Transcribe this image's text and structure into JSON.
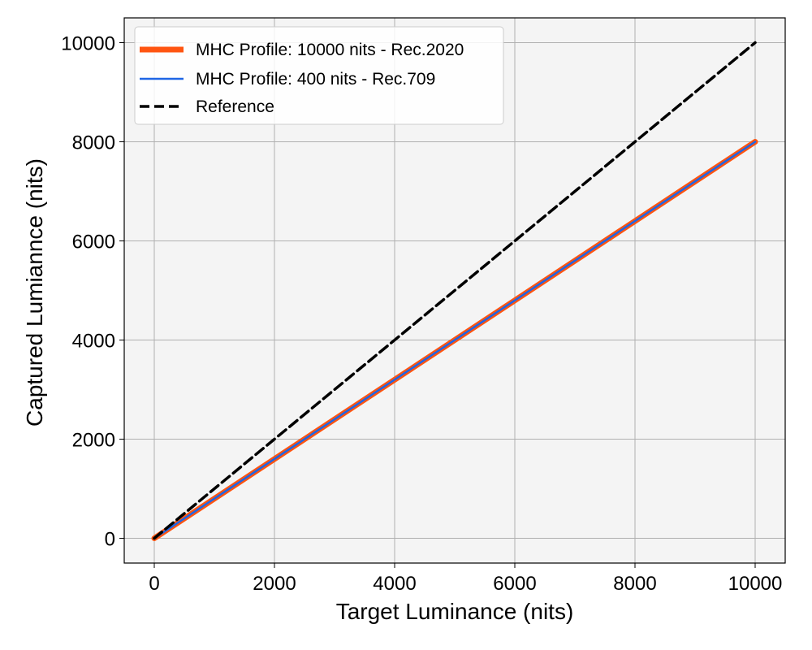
{
  "chart_data": {
    "type": "line",
    "xlabel": "Target Luminance (nits)",
    "ylabel": "Captured Lumiannce (nits)",
    "xlim": [
      -500,
      10500
    ],
    "ylim": [
      -500,
      10500
    ],
    "x_ticks": [
      0,
      2000,
      4000,
      6000,
      8000,
      10000
    ],
    "y_ticks": [
      0,
      2000,
      4000,
      6000,
      8000,
      10000
    ],
    "x_tick_labels": [
      "0",
      "2000",
      "4000",
      "6000",
      "8000",
      "10000"
    ],
    "y_tick_labels": [
      "0",
      "2000",
      "4000",
      "6000",
      "8000",
      "10000"
    ],
    "grid": true,
    "legend_position": "top-left",
    "background_color": "#f4f4f4",
    "series": [
      {
        "name": "MHC Profile: 10000 nits - Rec.2020",
        "color": "#ff5511",
        "style": "solid-thick",
        "x": [
          0,
          10000
        ],
        "y": [
          0,
          8000
        ]
      },
      {
        "name": "MHC Profile: 400 nits - Rec.709",
        "color": "#1f66e5",
        "style": "solid",
        "x": [
          0,
          10000
        ],
        "y": [
          0,
          8000
        ]
      },
      {
        "name": "Reference",
        "color": "#000000",
        "style": "dashed",
        "x": [
          0,
          10000
        ],
        "y": [
          0,
          10000
        ]
      }
    ]
  }
}
